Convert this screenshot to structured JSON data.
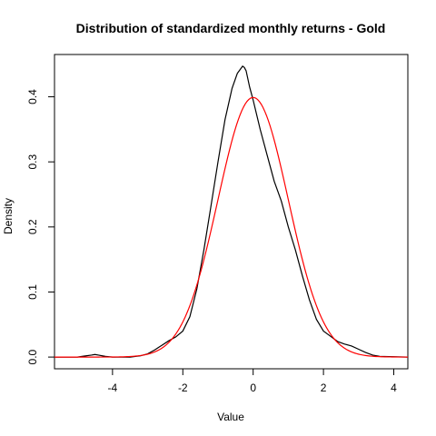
{
  "chart_data": {
    "type": "line",
    "title": "Distribution of standardized monthly returns - Gold",
    "xlabel": "Value",
    "ylabel": "Density",
    "xlim": [
      -5.65,
      4.4
    ],
    "ylim": [
      -0.018,
      0.465
    ],
    "x_ticks": [
      -4,
      -2,
      0,
      2,
      4
    ],
    "x_tick_labels": [
      "-4",
      "-2",
      "0",
      "2",
      "4"
    ],
    "y_ticks": [
      0.0,
      0.1,
      0.2,
      0.3,
      0.4
    ],
    "y_tick_labels": [
      "0.0",
      "0.1",
      "0.2",
      "0.3",
      "0.4"
    ],
    "grid": false,
    "legend": "none",
    "series": [
      {
        "color": "#000000",
        "x": [
          -5.65,
          -5.0,
          -4.8,
          -4.6,
          -4.5,
          -4.4,
          -4.2,
          -4.0,
          -3.8,
          -3.5,
          -3.2,
          -3.0,
          -2.8,
          -2.6,
          -2.4,
          -2.2,
          -2.0,
          -1.8,
          -1.6,
          -1.4,
          -1.2,
          -1.0,
          -0.8,
          -0.6,
          -0.45,
          -0.3,
          -0.25,
          -0.2,
          -0.1,
          0.0,
          0.2,
          0.4,
          0.6,
          0.8,
          1.0,
          1.2,
          1.4,
          1.6,
          1.8,
          2.0,
          2.2,
          2.4,
          2.6,
          2.8,
          3.0,
          3.2,
          3.4,
          3.6,
          4.4
        ],
        "y": [
          0.0,
          0.0,
          0.0015,
          0.003,
          0.004,
          0.003,
          0.001,
          0.0,
          0.0,
          0.0,
          0.002,
          0.005,
          0.011,
          0.018,
          0.025,
          0.031,
          0.04,
          0.062,
          0.105,
          0.165,
          0.232,
          0.3,
          0.365,
          0.413,
          0.436,
          0.447,
          0.445,
          0.44,
          0.415,
          0.395,
          0.35,
          0.31,
          0.27,
          0.24,
          0.2,
          0.165,
          0.125,
          0.088,
          0.058,
          0.04,
          0.032,
          0.024,
          0.02,
          0.017,
          0.012,
          0.007,
          0.003,
          0.001,
          0.0
        ]
      },
      {
        "color": "#ff0000",
        "distribution": "standard-normal",
        "x_range": [
          -5.65,
          4.4
        ]
      }
    ]
  }
}
